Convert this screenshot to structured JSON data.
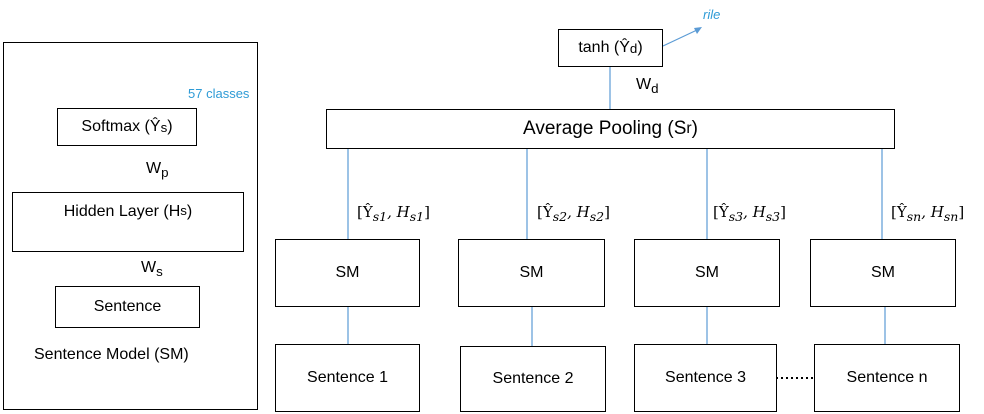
{
  "sentence_model": {
    "caption": "Sentence Model (SM)",
    "softmax": "Softmax (Ŷ",
    "softmax_sub": "s",
    "classes": "57 classes",
    "weight_p": "W",
    "weight_p_sub": "p",
    "hidden": "Hidden Layer (H",
    "hidden_sub": "s",
    "weight_s": "W",
    "weight_s_sub": "s",
    "sentence": "Sentence"
  },
  "document_model": {
    "tanh": "tanh (Ŷ",
    "tanh_sub": "d",
    "rile": "rile",
    "weight_d": "W",
    "weight_d_sub": "d",
    "pooling": "Average Pooling (S",
    "pooling_sub": "r",
    "branches": [
      {
        "feature": "[Ŷ",
        "feature_sub1": "s1",
        "feature_mid": ", H",
        "feature_sub2": "s1",
        "module": "SM",
        "sentence": "Sentence 1"
      },
      {
        "feature": "[Ŷ",
        "feature_sub1": "s2",
        "feature_mid": ", H",
        "feature_sub2": "s2",
        "module": "SM",
        "sentence": "Sentence 2"
      },
      {
        "feature": "[Ŷ",
        "feature_sub1": "s3",
        "feature_mid": ", H",
        "feature_sub2": "s3",
        "module": "SM",
        "sentence": "Sentence 3"
      },
      {
        "feature": "[Ŷ",
        "feature_sub1": "sn",
        "feature_mid": ", H",
        "feature_sub2": "sn",
        "module": "SM",
        "sentence": "Sentence n"
      }
    ],
    "close_bracket": "]"
  },
  "colors": {
    "line": "#5b9bd5",
    "accent_text": "#2e9bd6",
    "border": "#000000"
  }
}
